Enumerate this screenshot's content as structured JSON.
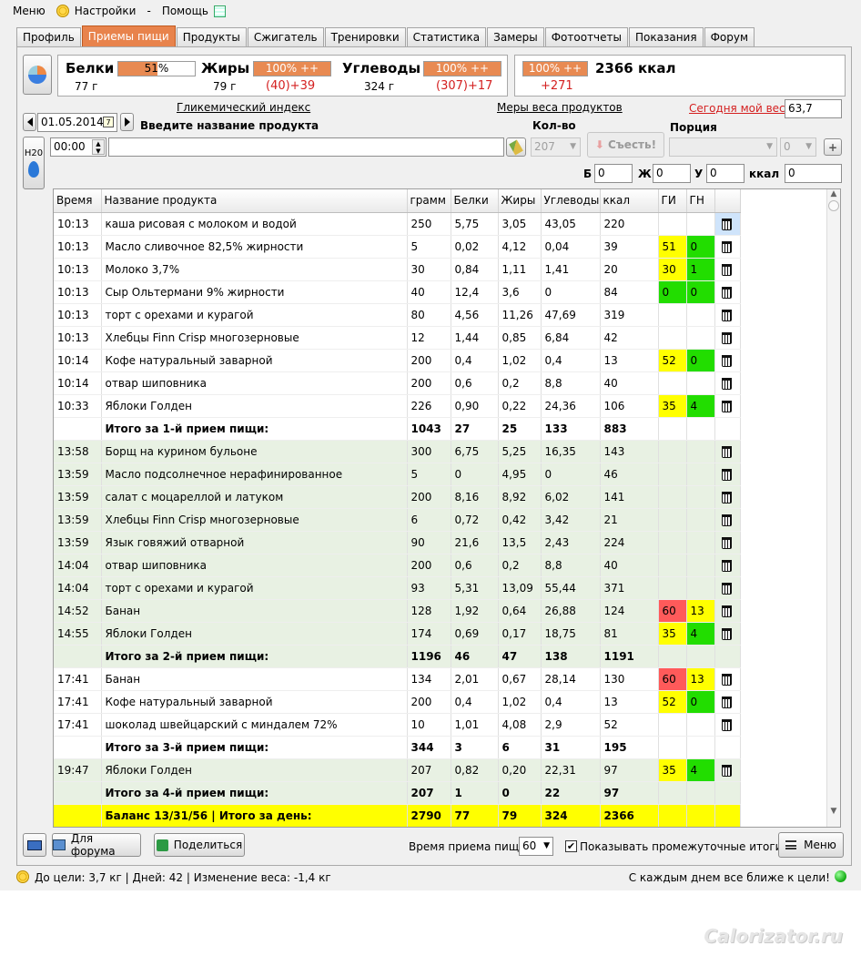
{
  "menu": {
    "menu": "Меню",
    "settings": "Настройки",
    "dash": "-",
    "help": "Помощь"
  },
  "tabs": [
    "Профиль",
    "Приемы пищи",
    "Продукты",
    "Сжигатель",
    "Тренировки",
    "Статистика",
    "Замеры",
    "Фотоотчеты",
    "Показания",
    "Форум"
  ],
  "summary": {
    "proteins": {
      "label": "Белки",
      "percent": "51%",
      "fraction": 0.51,
      "grams": "77 г",
      "delta": ""
    },
    "fats": {
      "label": "Жиры",
      "percent": "100% ++",
      "fraction": 1.0,
      "grams": "79 г",
      "delta": "(40)+39"
    },
    "carbs": {
      "label": "Углеводы",
      "percent": "100% ++",
      "fraction": 1.0,
      "grams": "324 г",
      "delta": "(307)+17"
    },
    "kcal": {
      "percent": "100% ++",
      "fraction": 1.0,
      "value": "2366 ккал",
      "delta": "+271"
    }
  },
  "controls": {
    "gi_link": "Гликемический индекс",
    "measures_link": "Меры веса продуктов",
    "weight_link": "Сегодня мой вес:",
    "weight_value": "63,7",
    "date": "01.05.2014",
    "product_label": "Введите название продукта",
    "qty_label": "Кол-во",
    "portion_label": "Порция",
    "time": "00:00",
    "qty_value": "207",
    "eat_button": "Съесть!",
    "portion_count": "0",
    "h2o": "H20",
    "b_label": "Б",
    "b_value": "0",
    "zh_label": "Ж",
    "zh_value": "0",
    "u_label": "У",
    "u_value": "0",
    "kcal_label": "ккал",
    "kcal_value": "0"
  },
  "table": {
    "headers": [
      "Время",
      "Название продукта",
      "грамм",
      "Белки",
      "Жиры",
      "Углеводы",
      "ккал",
      "ГИ",
      "ГН"
    ],
    "rows": [
      {
        "t": "10:13",
        "n": "каша рисовая с молоком и водой",
        "g": "250",
        "b": "5,75",
        "z": "3,05",
        "u": "43,05",
        "k": "220",
        "gi": "",
        "gn": "",
        "cls": "",
        "sel": true
      },
      {
        "t": "10:13",
        "n": "Масло сливочное 82,5% жирности",
        "g": "5",
        "b": "0,02",
        "z": "4,12",
        "u": "0,04",
        "k": "39",
        "gi": "51",
        "gn": "0",
        "gic": "y",
        "gnc": "gr"
      },
      {
        "t": "10:13",
        "n": "Молоко 3,7%",
        "g": "30",
        "b": "0,84",
        "z": "1,11",
        "u": "1,41",
        "k": "20",
        "gi": "30",
        "gn": "1",
        "gic": "y",
        "gnc": "gr"
      },
      {
        "t": "10:13",
        "n": "Сыр Ольтермани 9% жирности",
        "g": "40",
        "b": "12,4",
        "z": "3,6",
        "u": "0",
        "k": "84",
        "gi": "0",
        "gn": "0",
        "gic": "gr",
        "gnc": "gr"
      },
      {
        "t": "10:13",
        "n": "торт с орехами и курагой",
        "g": "80",
        "b": "4,56",
        "z": "11,26",
        "u": "47,69",
        "k": "319",
        "gi": "",
        "gn": ""
      },
      {
        "t": "10:13",
        "n": "Хлебцы Finn Crisp многозерновые",
        "g": "12",
        "b": "1,44",
        "z": "0,85",
        "u": "6,84",
        "k": "42",
        "gi": "",
        "gn": ""
      },
      {
        "t": "10:14",
        "n": "Кофе натуральный заварной",
        "g": "200",
        "b": "0,4",
        "z": "1,02",
        "u": "0,4",
        "k": "13",
        "gi": "52",
        "gn": "0",
        "gic": "y",
        "gnc": "gr"
      },
      {
        "t": "10:14",
        "n": "отвар шиповника",
        "g": "200",
        "b": "0,6",
        "z": "0,2",
        "u": "8,8",
        "k": "40",
        "gi": "",
        "gn": ""
      },
      {
        "t": "10:33",
        "n": "Яблоки Голден",
        "g": "226",
        "b": "0,90",
        "z": "0,22",
        "u": "24,36",
        "k": "106",
        "gi": "35",
        "gn": "4",
        "gic": "y",
        "gnc": "gr"
      },
      {
        "t": "",
        "n": "Итого за 1-й прием пищи:",
        "g": "1043",
        "b": "27",
        "z": "25",
        "u": "133",
        "k": "883",
        "gi": "",
        "gn": "",
        "cls": "tot",
        "notrash": true
      },
      {
        "t": "13:58",
        "n": "Борщ на курином бульоне",
        "g": "300",
        "b": "6,75",
        "z": "5,25",
        "u": "16,35",
        "k": "143",
        "gi": "",
        "gn": "",
        "cls": "g"
      },
      {
        "t": "13:59",
        "n": "Масло подсолнечное нерафинированное",
        "g": "5",
        "b": "0",
        "z": "4,95",
        "u": "0",
        "k": "46",
        "gi": "",
        "gn": "",
        "cls": "g"
      },
      {
        "t": "13:59",
        "n": "салат с моцареллой и латуком",
        "g": "200",
        "b": "8,16",
        "z": "8,92",
        "u": "6,02",
        "k": "141",
        "gi": "",
        "gn": "",
        "cls": "g"
      },
      {
        "t": "13:59",
        "n": "Хлебцы Finn Crisp многозерновые",
        "g": "6",
        "b": "0,72",
        "z": "0,42",
        "u": "3,42",
        "k": "21",
        "gi": "",
        "gn": "",
        "cls": "g"
      },
      {
        "t": "13:59",
        "n": "Язык говяжий отварной",
        "g": "90",
        "b": "21,6",
        "z": "13,5",
        "u": "2,43",
        "k": "224",
        "gi": "",
        "gn": "",
        "cls": "g"
      },
      {
        "t": "14:04",
        "n": "отвар шиповника",
        "g": "200",
        "b": "0,6",
        "z": "0,2",
        "u": "8,8",
        "k": "40",
        "gi": "",
        "gn": "",
        "cls": "g"
      },
      {
        "t": "14:04",
        "n": "торт с орехами и курагой",
        "g": "93",
        "b": "5,31",
        "z": "13,09",
        "u": "55,44",
        "k": "371",
        "gi": "",
        "gn": "",
        "cls": "g"
      },
      {
        "t": "14:52",
        "n": "Банан",
        "g": "128",
        "b": "1,92",
        "z": "0,64",
        "u": "26,88",
        "k": "124",
        "gi": "60",
        "gn": "13",
        "gic": "rd",
        "gnc": "y",
        "cls": "g"
      },
      {
        "t": "14:55",
        "n": "Яблоки Голден",
        "g": "174",
        "b": "0,69",
        "z": "0,17",
        "u": "18,75",
        "k": "81",
        "gi": "35",
        "gn": "4",
        "gic": "y",
        "gnc": "gr",
        "cls": "g"
      },
      {
        "t": "",
        "n": "Итого за 2-й прием пищи:",
        "g": "1196",
        "b": "46",
        "z": "47",
        "u": "138",
        "k": "1191",
        "gi": "",
        "gn": "",
        "cls": "g tot",
        "notrash": true
      },
      {
        "t": "17:41",
        "n": "Банан",
        "g": "134",
        "b": "2,01",
        "z": "0,67",
        "u": "28,14",
        "k": "130",
        "gi": "60",
        "gn": "13",
        "gic": "rd",
        "gnc": "y"
      },
      {
        "t": "17:41",
        "n": "Кофе натуральный заварной",
        "g": "200",
        "b": "0,4",
        "z": "1,02",
        "u": "0,4",
        "k": "13",
        "gi": "52",
        "gn": "0",
        "gic": "y",
        "gnc": "gr"
      },
      {
        "t": "17:41",
        "n": "шоколад швейцарский с миндалем 72%",
        "g": "10",
        "b": "1,01",
        "z": "4,08",
        "u": "2,9",
        "k": "52",
        "gi": "",
        "gn": ""
      },
      {
        "t": "",
        "n": "Итого за 3-й прием пищи:",
        "g": "344",
        "b": "3",
        "z": "6",
        "u": "31",
        "k": "195",
        "gi": "",
        "gn": "",
        "cls": "tot",
        "notrash": true
      },
      {
        "t": "19:47",
        "n": "Яблоки Голден",
        "g": "207",
        "b": "0,82",
        "z": "0,20",
        "u": "22,31",
        "k": "97",
        "gi": "35",
        "gn": "4",
        "gic": "y",
        "gnc": "gr",
        "cls": "g"
      },
      {
        "t": "",
        "n": "Итого за 4-й прием пищи:",
        "g": "207",
        "b": "1",
        "z": "0",
        "u": "22",
        "k": "97",
        "gi": "",
        "gn": "",
        "cls": "g tot",
        "notrash": true
      },
      {
        "t": "",
        "n": "Баланс 13/31/56  |  Итого за день:",
        "g": "2790",
        "b": "77",
        "z": "79",
        "u": "324",
        "k": "2366",
        "gi": "",
        "gn": "",
        "cls": "bal",
        "notrash": true
      }
    ]
  },
  "bottom": {
    "forum_button": "Для форума",
    "share_button": "Поделиться",
    "meal_time_label": "Время приема пищи",
    "meal_time_value": "60",
    "show_totals_label": "Показывать промежуточные итоги",
    "menu_button": "Меню"
  },
  "status": {
    "left": "До цели: 3,7 кг | Дней: 42 | Изменение веса: -1,4 кг",
    "right": "С каждым днем все ближе к цели!"
  },
  "watermark": "Calorizator.ru"
}
